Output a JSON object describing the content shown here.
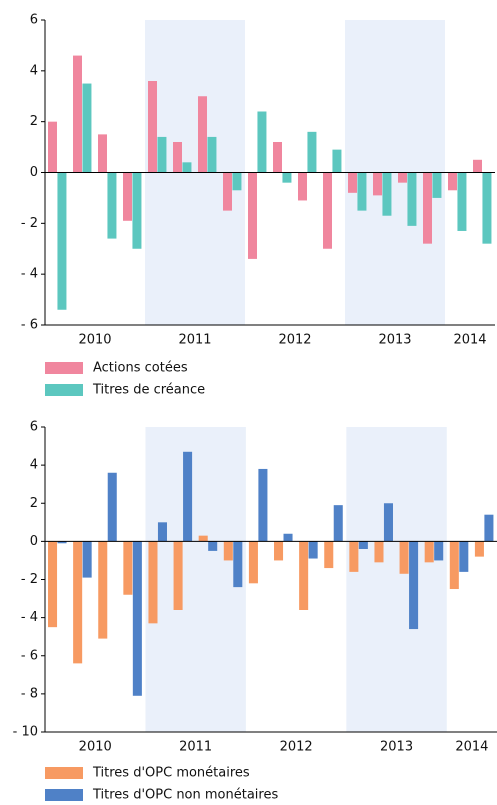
{
  "chart_data": [
    {
      "type": "bar",
      "ylim": [
        -6,
        6
      ],
      "yticks": [
        6,
        4,
        2,
        0,
        {
          "value": -2,
          "label": "- 2"
        },
        {
          "value": -4,
          "label": "- 4"
        },
        {
          "value": -6,
          "label": "- 6"
        }
      ],
      "categories": [
        null,
        null,
        null,
        null,
        null,
        null,
        null,
        null,
        null,
        null,
        null,
        null,
        null,
        null,
        null,
        null,
        null,
        null
      ],
      "x_groups": [
        {
          "label": "2010",
          "count": 4
        },
        {
          "label": "2011",
          "count": 4
        },
        {
          "label": "2012",
          "count": 4
        },
        {
          "label": "2013",
          "count": 4
        },
        {
          "label": "2014",
          "count": 2
        }
      ],
      "series": [
        {
          "name": "Actions cotées",
          "color": "#f0869e",
          "values": [
            2.0,
            4.6,
            1.5,
            -1.9,
            3.6,
            1.2,
            3.0,
            -1.5,
            -3.4,
            1.2,
            -1.1,
            -3.0,
            -0.8,
            -0.9,
            -0.4,
            -2.8,
            -0.7,
            0.5
          ]
        },
        {
          "name": "Titres de créance",
          "color": "#5cc7bf",
          "values": [
            -5.4,
            3.5,
            -2.6,
            -3.0,
            1.4,
            0.4,
            1.4,
            -0.7,
            2.4,
            -0.4,
            1.6,
            0.9,
            -1.5,
            -1.7,
            -2.1,
            -1.0,
            -2.3,
            -2.8
          ]
        }
      ]
    },
    {
      "type": "bar",
      "ylim": [
        -10,
        6
      ],
      "yticks": [
        6,
        4,
        2,
        0,
        {
          "value": -2,
          "label": "- 2"
        },
        {
          "value": -4,
          "label": "- 4"
        },
        {
          "value": -6,
          "label": "- 6"
        },
        {
          "value": -8,
          "label": "- 8"
        },
        {
          "value": -10,
          "label": "- 10"
        }
      ],
      "categories": [
        null,
        null,
        null,
        null,
        null,
        null,
        null,
        null,
        null,
        null,
        null,
        null,
        null,
        null,
        null,
        null,
        null,
        null
      ],
      "x_groups": [
        {
          "label": "2010",
          "count": 4
        },
        {
          "label": "2011",
          "count": 4
        },
        {
          "label": "2012",
          "count": 4
        },
        {
          "label": "2013",
          "count": 4
        },
        {
          "label": "2014",
          "count": 2
        }
      ],
      "series": [
        {
          "name": "Titres d'OPC monétaires",
          "color": "#f79a62",
          "values": [
            -4.5,
            -6.4,
            -5.1,
            -2.8,
            -4.3,
            -3.6,
            0.3,
            -1.0,
            -2.2,
            -1.0,
            -3.6,
            -1.4,
            -1.6,
            -1.1,
            -1.7,
            -1.1,
            -2.5,
            -0.8
          ]
        },
        {
          "name": "Titres d'OPC non monétaires",
          "color": "#4f81c7",
          "values": [
            -0.1,
            -1.9,
            3.6,
            -8.1,
            1.0,
            4.7,
            -0.5,
            -2.4,
            3.8,
            0.4,
            -0.9,
            1.9,
            -0.4,
            2.0,
            -4.6,
            -1.0,
            -1.6,
            1.4
          ]
        }
      ]
    }
  ]
}
